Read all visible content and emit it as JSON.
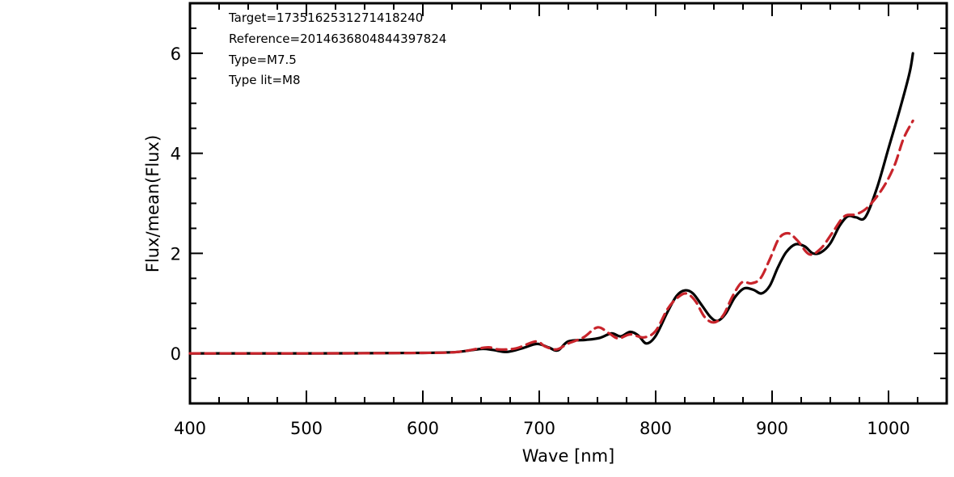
{
  "chart_data": {
    "type": "line",
    "title": "",
    "xlabel": "Wave [nm]",
    "ylabel": "Flux/mean(Flux)",
    "xlim": [
      400,
      1050
    ],
    "ylim": [
      -1,
      7
    ],
    "x_ticks": [
      "400",
      "500",
      "600",
      "700",
      "800",
      "900",
      "1000"
    ],
    "y_ticks": [
      "0",
      "2",
      "4",
      "6"
    ],
    "annotations": [
      "Target=1735162531271418240",
      "Reference=2014636804844397824",
      "Type=M7.5",
      "Type lit=M8"
    ],
    "grid": false,
    "series": [
      {
        "style": "solid",
        "color": "#000000",
        "points": [
          [
            400,
            0
          ],
          [
            500,
            0
          ],
          [
            600,
            0.01
          ],
          [
            630,
            0.03
          ],
          [
            650,
            0.09
          ],
          [
            660,
            0.07
          ],
          [
            672,
            0.03
          ],
          [
            685,
            0.1
          ],
          [
            698,
            0.19
          ],
          [
            708,
            0.12
          ],
          [
            716,
            0.06
          ],
          [
            725,
            0.24
          ],
          [
            740,
            0.27
          ],
          [
            752,
            0.31
          ],
          [
            762,
            0.4
          ],
          [
            770,
            0.34
          ],
          [
            778,
            0.43
          ],
          [
            785,
            0.36
          ],
          [
            792,
            0.2
          ],
          [
            800,
            0.35
          ],
          [
            810,
            0.82
          ],
          [
            818,
            1.15
          ],
          [
            825,
            1.26
          ],
          [
            832,
            1.2
          ],
          [
            840,
            0.95
          ],
          [
            847,
            0.73
          ],
          [
            853,
            0.65
          ],
          [
            860,
            0.79
          ],
          [
            868,
            1.12
          ],
          [
            876,
            1.3
          ],
          [
            884,
            1.27
          ],
          [
            891,
            1.2
          ],
          [
            898,
            1.35
          ],
          [
            905,
            1.72
          ],
          [
            912,
            2.02
          ],
          [
            920,
            2.18
          ],
          [
            928,
            2.14
          ],
          [
            935,
            2.0
          ],
          [
            942,
            2.02
          ],
          [
            950,
            2.2
          ],
          [
            958,
            2.55
          ],
          [
            965,
            2.74
          ],
          [
            972,
            2.72
          ],
          [
            980,
            2.72
          ],
          [
            990,
            3.3
          ],
          [
            1000,
            4.1
          ],
          [
            1010,
            4.9
          ],
          [
            1018,
            5.6
          ],
          [
            1021,
            6.0
          ]
        ]
      },
      {
        "style": "dashed",
        "color": "#c8242b",
        "points": [
          [
            400,
            0
          ],
          [
            500,
            0
          ],
          [
            600,
            0.01
          ],
          [
            630,
            0.03
          ],
          [
            655,
            0.12
          ],
          [
            665,
            0.08
          ],
          [
            680,
            0.1
          ],
          [
            697,
            0.24
          ],
          [
            705,
            0.14
          ],
          [
            715,
            0.08
          ],
          [
            725,
            0.2
          ],
          [
            738,
            0.32
          ],
          [
            750,
            0.52
          ],
          [
            760,
            0.4
          ],
          [
            768,
            0.3
          ],
          [
            778,
            0.38
          ],
          [
            790,
            0.32
          ],
          [
            800,
            0.45
          ],
          [
            810,
            0.88
          ],
          [
            818,
            1.1
          ],
          [
            826,
            1.2
          ],
          [
            834,
            1.05
          ],
          [
            842,
            0.73
          ],
          [
            850,
            0.62
          ],
          [
            858,
            0.76
          ],
          [
            866,
            1.14
          ],
          [
            874,
            1.42
          ],
          [
            882,
            1.4
          ],
          [
            890,
            1.5
          ],
          [
            898,
            1.88
          ],
          [
            906,
            2.3
          ],
          [
            914,
            2.4
          ],
          [
            922,
            2.25
          ],
          [
            932,
            1.98
          ],
          [
            942,
            2.1
          ],
          [
            952,
            2.42
          ],
          [
            962,
            2.74
          ],
          [
            972,
            2.78
          ],
          [
            982,
            2.92
          ],
          [
            995,
            3.3
          ],
          [
            1005,
            3.75
          ],
          [
            1013,
            4.3
          ],
          [
            1021,
            4.65
          ]
        ]
      }
    ]
  }
}
